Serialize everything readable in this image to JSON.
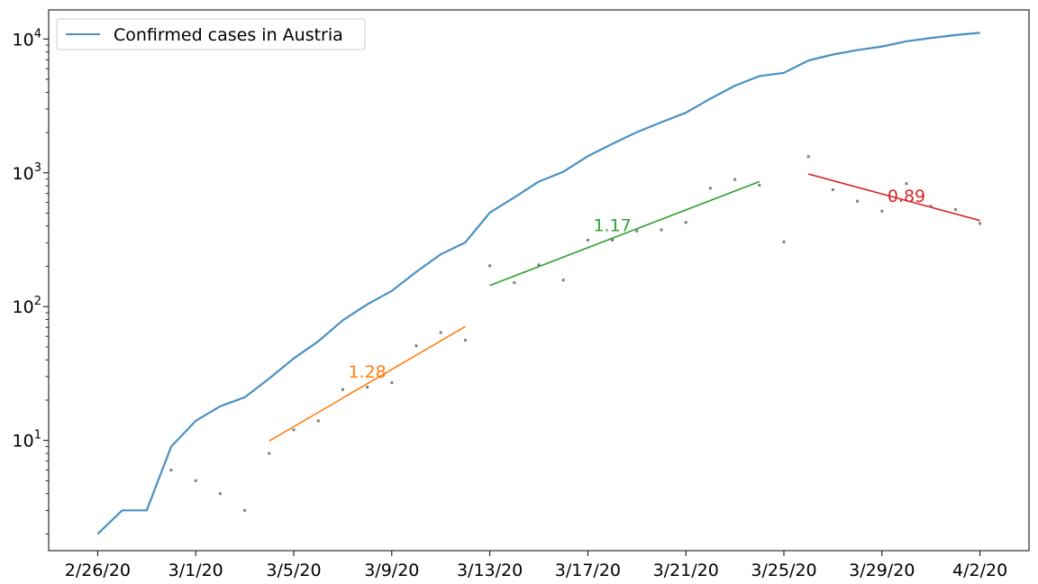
{
  "chart_data": {
    "type": "line",
    "y_scale": "log",
    "ylim": [
      1.5,
      16500
    ],
    "xlim": [
      "2/24/20",
      "4/4/20"
    ],
    "grid": false,
    "legend_position": "top-left",
    "x_ticks": [
      "2/26/20",
      "3/1/20",
      "3/5/20",
      "3/9/20",
      "3/13/20",
      "3/17/20",
      "3/21/20",
      "3/25/20",
      "3/29/20",
      "4/2/20"
    ],
    "y_ticks": [
      {
        "value": 10,
        "base": "10",
        "exp": "1"
      },
      {
        "value": 100,
        "base": "10",
        "exp": "2"
      },
      {
        "value": 1000,
        "base": "10",
        "exp": "3"
      },
      {
        "value": 10000,
        "base": "10",
        "exp": "4"
      }
    ],
    "series": [
      {
        "name": "Confirmed cases in Austria",
        "color": "#4a90c2",
        "points": [
          [
            "2/26/20",
            2
          ],
          [
            "2/27/20",
            3
          ],
          [
            "2/28/20",
            3
          ],
          [
            "2/29/20",
            9
          ],
          [
            "3/1/20",
            14
          ],
          [
            "3/2/20",
            18
          ],
          [
            "3/3/20",
            21
          ],
          [
            "3/4/20",
            29
          ],
          [
            "3/5/20",
            41
          ],
          [
            "3/6/20",
            55
          ],
          [
            "3/7/20",
            79
          ],
          [
            "3/8/20",
            104
          ],
          [
            "3/9/20",
            131
          ],
          [
            "3/10/20",
            182
          ],
          [
            "3/11/20",
            246
          ],
          [
            "3/12/20",
            302
          ],
          [
            "3/13/20",
            504
          ],
          [
            "3/14/20",
            655
          ],
          [
            "3/15/20",
            860
          ],
          [
            "3/16/20",
            1018
          ],
          [
            "3/17/20",
            1332
          ],
          [
            "3/18/20",
            1646
          ],
          [
            "3/19/20",
            2013
          ],
          [
            "3/20/20",
            2388
          ],
          [
            "3/21/20",
            2814
          ],
          [
            "3/22/20",
            3582
          ],
          [
            "3/23/20",
            4474
          ],
          [
            "3/24/20",
            5283
          ],
          [
            "3/25/20",
            5588
          ],
          [
            "3/26/20",
            6909
          ],
          [
            "3/27/20",
            7657
          ],
          [
            "3/28/20",
            8271
          ],
          [
            "3/29/20",
            8788
          ],
          [
            "3/30/20",
            9618
          ],
          [
            "3/31/20",
            10180
          ],
          [
            "4/1/20",
            10711
          ],
          [
            "4/2/20",
            11129
          ]
        ]
      }
    ],
    "daily_new_cases": {
      "color": "#7f7f7f",
      "points": [
        [
          "2/29/20",
          6
        ],
        [
          "3/1/20",
          5
        ],
        [
          "3/2/20",
          4
        ],
        [
          "3/3/20",
          3
        ],
        [
          "3/4/20",
          8
        ],
        [
          "3/5/20",
          12
        ],
        [
          "3/6/20",
          14
        ],
        [
          "3/7/20",
          24
        ],
        [
          "3/8/20",
          25
        ],
        [
          "3/9/20",
          27
        ],
        [
          "3/10/20",
          51
        ],
        [
          "3/11/20",
          64
        ],
        [
          "3/12/20",
          56
        ],
        [
          "3/13/20",
          202
        ],
        [
          "3/14/20",
          151
        ],
        [
          "3/15/20",
          205
        ],
        [
          "3/16/20",
          158
        ],
        [
          "3/17/20",
          314
        ],
        [
          "3/18/20",
          314
        ],
        [
          "3/19/20",
          367
        ],
        [
          "3/20/20",
          375
        ],
        [
          "3/21/20",
          426
        ],
        [
          "3/22/20",
          768
        ],
        [
          "3/23/20",
          892
        ],
        [
          "3/24/20",
          809
        ],
        [
          "3/25/20",
          305
        ],
        [
          "3/26/20",
          1321
        ],
        [
          "3/27/20",
          748
        ],
        [
          "3/28/20",
          614
        ],
        [
          "3/29/20",
          517
        ],
        [
          "3/30/20",
          830
        ],
        [
          "3/31/20",
          562
        ],
        [
          "4/1/20",
          531
        ],
        [
          "4/2/20",
          418
        ]
      ]
    },
    "fits": [
      {
        "label": "1.28",
        "color": "#ff7f0e",
        "start": [
          "3/4/20",
          9.9
        ],
        "end": [
          "3/12/20",
          71
        ],
        "label_at": [
          "3/8/20",
          32
        ]
      },
      {
        "label": "1.17",
        "color": "#2ca02c",
        "start": [
          "3/13/20",
          144
        ],
        "end": [
          "3/24/20",
          860
        ],
        "label_at": [
          "3/18/20",
          400
        ]
      },
      {
        "label": "0.89",
        "color": "#d62728",
        "start": [
          "3/26/20",
          980
        ],
        "end": [
          "4/2/20",
          440
        ],
        "label_at": [
          "3/30/20",
          660
        ]
      }
    ]
  }
}
